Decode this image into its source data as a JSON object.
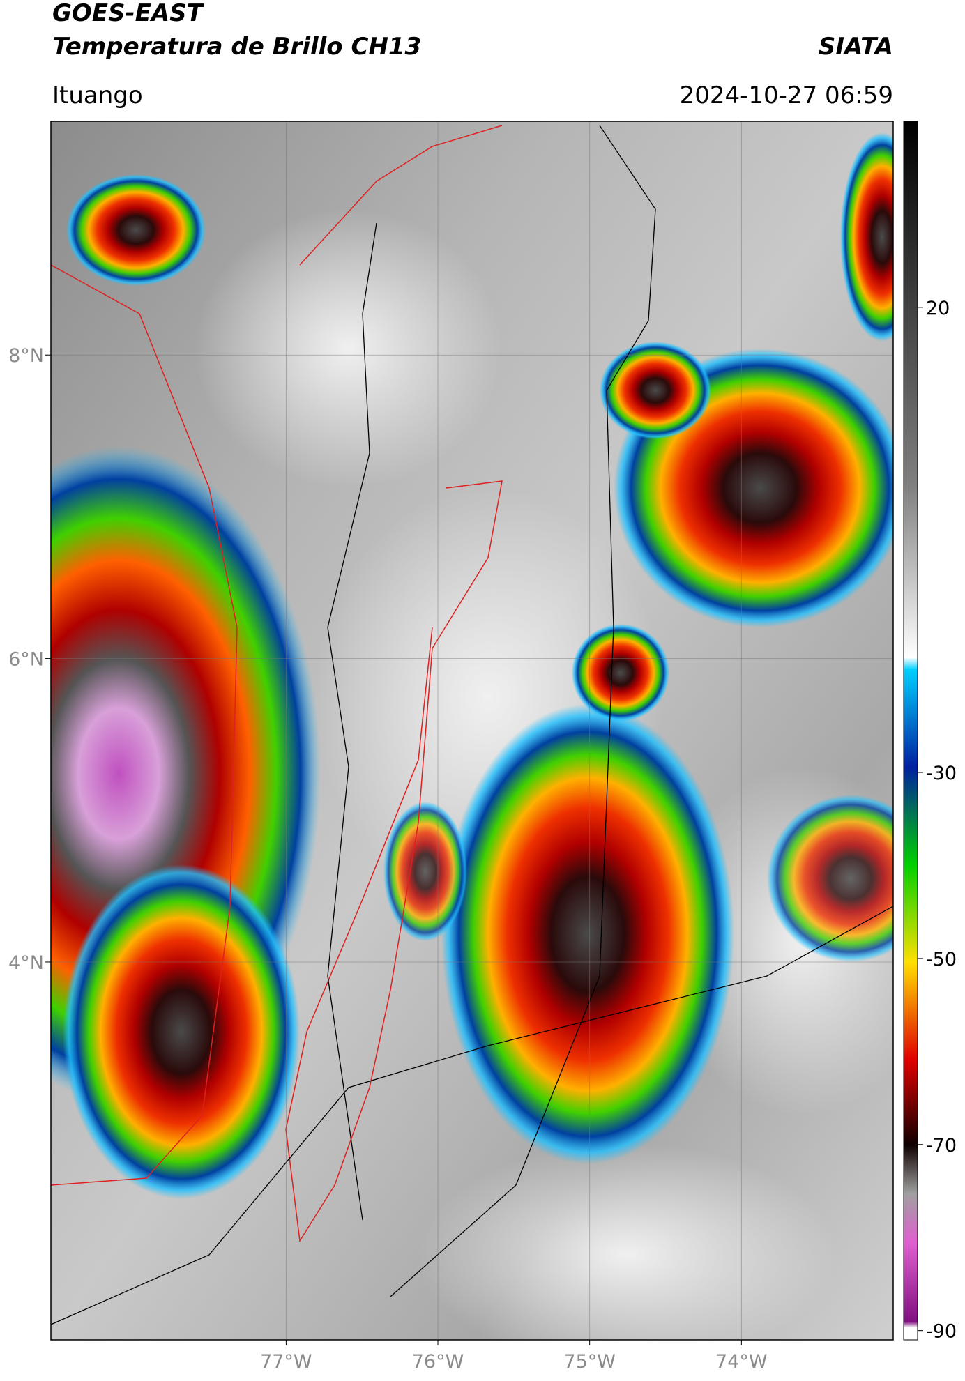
{
  "header": {
    "title": "GOES-EAST",
    "subtitle": "Temperatura de Brillo CH13",
    "brand": "SIATA",
    "location": "Ituango",
    "datetime": "2024-10-27 06:59"
  },
  "map": {
    "xlim": [
      -78.55,
      -73.0
    ],
    "ylim": [
      1.51,
      9.54
    ],
    "xticks": [
      {
        "value": -77,
        "label": "77°W"
      },
      {
        "value": -76,
        "label": "76°W"
      },
      {
        "value": -75,
        "label": "75°W"
      },
      {
        "value": -74,
        "label": "74°W"
      }
    ],
    "yticks": [
      {
        "value": 8,
        "label": "8°N"
      },
      {
        "value": 6,
        "label": "6°N"
      },
      {
        "value": 4,
        "label": "4°N"
      }
    ],
    "grid": true
  },
  "colorbar": {
    "lim": [
      -91,
      40
    ],
    "ticks": [
      20,
      -30,
      -50,
      -70,
      -90
    ]
  }
}
